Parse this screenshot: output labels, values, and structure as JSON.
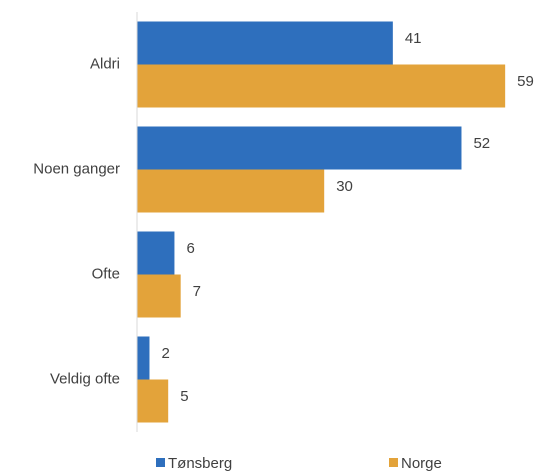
{
  "chart_data": {
    "type": "barh",
    "categories": [
      "Aldri",
      "Noen ganger",
      "Ofte",
      "Veldig ofte"
    ],
    "series": [
      {
        "name": "Tønsberg",
        "color": "#2e6fbd",
        "values": [
          41,
          52,
          6,
          2
        ]
      },
      {
        "name": "Norge",
        "color": "#e3a33a",
        "values": [
          59,
          30,
          7,
          5
        ]
      }
    ],
    "xlim": [
      0,
      65
    ],
    "legend": "bottom"
  }
}
